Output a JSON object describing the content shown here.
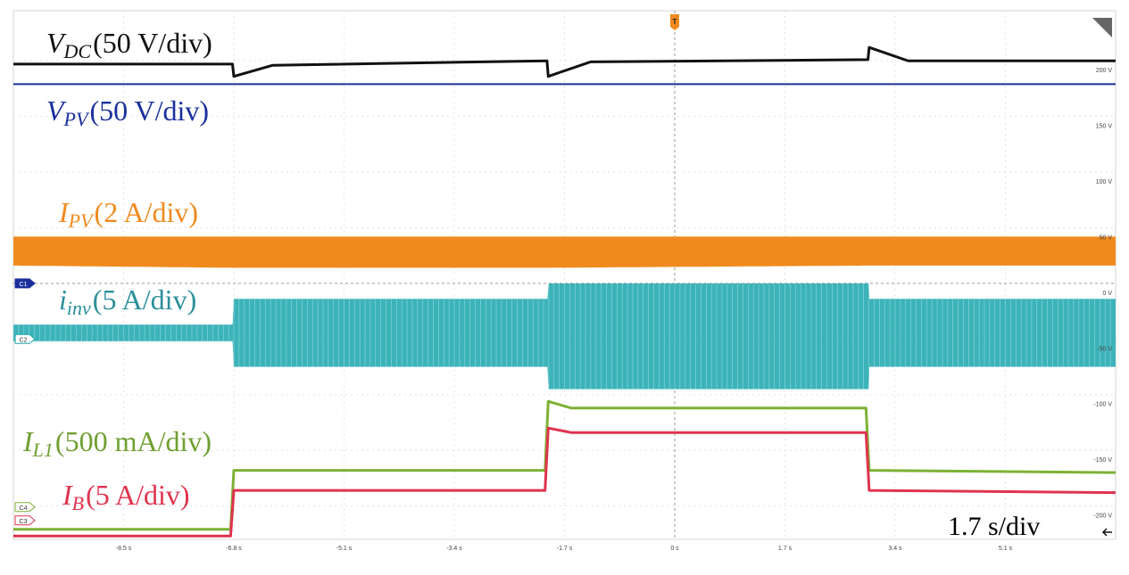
{
  "window": {
    "title": ""
  },
  "chart_data": {
    "type": "line",
    "title": "",
    "xlabel": "",
    "ylabel": "",
    "time_per_div": "1.7 s/div",
    "x_ticks": [
      "-8.5 s",
      "-6.8 s",
      "-5.1 s",
      "-3.4 s",
      "-1.7 s",
      "0 s",
      "1.7 s",
      "3.4 s",
      "5.1 s"
    ],
    "y_ticks": [
      "200 V",
      "150 V",
      "100 V",
      "50 V",
      "0 V",
      "-50 V",
      "-100 V",
      "-150 V",
      "-200 V"
    ],
    "xlim": [
      -10.2,
      6.8
    ],
    "ylim": [
      -230,
      245
    ],
    "step_times_s": [
      -6.8,
      -1.95,
      3.0
    ],
    "grid": true,
    "trigger_marker": "T",
    "series": [
      {
        "name": "V_DC (50 V/div)",
        "color": "#111111",
        "kind": "line",
        "x": [
          -10.2,
          -6.82,
          -6.8,
          -6.2,
          -1.97,
          -1.95,
          -1.3,
          2.98,
          3.0,
          3.6,
          6.8
        ],
        "y": [
          197,
          197,
          186,
          196,
          200,
          186,
          199,
          201,
          212,
          200,
          200
        ]
      },
      {
        "name": "V_PV (50 V/div)",
        "color": "#1a2f9c",
        "kind": "line",
        "x": [
          -10.2,
          6.8
        ],
        "y": [
          179,
          179
        ]
      },
      {
        "name": "I_PV (2 A/div)",
        "color": "#f08a1e",
        "kind": "band",
        "x": [
          -10.2,
          -6.8,
          -1.95,
          3.0,
          6.8
        ],
        "upper": [
          42,
          42,
          42,
          42,
          42
        ],
        "lower": [
          16,
          14,
          14,
          16,
          16
        ]
      },
      {
        "name": "i_inv (5 A/div)",
        "color": "#1aa6ad",
        "kind": "band",
        "x": [
          -10.2,
          -6.8,
          -6.8,
          -1.95,
          -1.95,
          3.0,
          3.0,
          6.8
        ],
        "upper": [
          -37,
          -37,
          -14,
          -14,
          0,
          0,
          -14,
          -14
        ],
        "lower": [
          -52,
          -52,
          -75,
          -75,
          -95,
          -95,
          -75,
          -75
        ]
      },
      {
        "name": "I_L1 (500 mA/div)",
        "color": "#7cb233",
        "kind": "line",
        "x": [
          -10.2,
          -6.85,
          -6.8,
          -2.0,
          -1.95,
          -1.6,
          2.95,
          3.0,
          6.8
        ],
        "y": [
          -221,
          -221,
          -168,
          -168,
          -106,
          -112,
          -112,
          -168,
          -170
        ]
      },
      {
        "name": "I_B (5 A/div)",
        "color": "#e0334e",
        "kind": "line",
        "x": [
          -10.2,
          -6.85,
          -6.8,
          -2.0,
          -1.95,
          -1.6,
          2.95,
          3.0,
          6.8
        ],
        "y": [
          -227,
          -227,
          -186,
          -186,
          -130,
          -134,
          -134,
          -186,
          -188
        ]
      }
    ],
    "labels": [
      {
        "key": "vdc",
        "sym": "V",
        "sub": "DC",
        "rest": "(50 V/div)",
        "color": "#111111"
      },
      {
        "key": "vpv",
        "sym": "V",
        "sub": "PV",
        "rest": "(50 V/div)",
        "color": "#1a2f9c"
      },
      {
        "key": "ipv",
        "sym": "I",
        "sub": "PV",
        "rest": "(2 A/div)",
        "color": "#f08a1e"
      },
      {
        "key": "iinv",
        "sym": "i",
        "sub": "inv",
        "rest": "(5 A/div)",
        "color": "#2a8f9a"
      },
      {
        "key": "il1",
        "sym": "I",
        "sub": "L1",
        "rest": "(500 mA/div)",
        "color": "#6f9f31"
      },
      {
        "key": "ib",
        "sym": "I",
        "sub": "B",
        "rest": "(5 A/div)",
        "color": "#e0334e"
      }
    ],
    "channel_markers": [
      "C1",
      "C2",
      "C4",
      "C3"
    ]
  }
}
